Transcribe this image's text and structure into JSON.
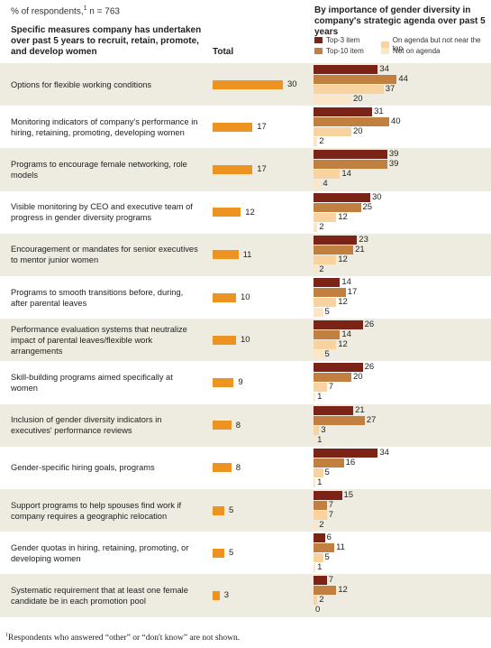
{
  "header": {
    "respondents_prefix": "% of respondents,",
    "respondents_sup": "1",
    "respondents_n": " n = 763",
    "left_title": "Specific measures company has undertaken over past 5 years to recruit, retain, promote, and develop women",
    "total_label": "Total",
    "right_title": "By importance of gender diversity in company's strategic agenda over past 5 years"
  },
  "legend": [
    {
      "label": "Top-3 item",
      "color": "#7b2316"
    },
    {
      "label": "On agenda but not near the top",
      "color": "#f8d39f"
    },
    {
      "label": "Top-10 item",
      "color": "#c28040"
    },
    {
      "label": "Not on agenda",
      "color": "#fbe6c8"
    }
  ],
  "chart_data": {
    "type": "bar",
    "categories": [
      "Options for flexible working conditions",
      "Monitoring indicators of company's performance in hiring, retaining, promoting, developing women",
      "Programs to encourage female networking, role models",
      "Visible monitoring by CEO and executive team of progress in gender diversity programs",
      "Encouragement or mandates for senior executives to mentor junior women",
      "Programs to smooth transitions before, during, after parental leaves",
      "Performance evaluation systems that neutralize impact of parental leaves/flexible work arrangements",
      "Skill-building programs aimed specifically at women",
      "Inclusion of gender diversity indicators in executives' performance reviews",
      "Gender-specific hiring goals, programs",
      "Support programs to help spouses find work if company requires a geographic relocation",
      "Gender quotas in hiring, retaining, promoting, or developing women",
      "Systematic requirement that at least one female candidate be in each promotion pool"
    ],
    "total": [
      30,
      17,
      17,
      12,
      11,
      10,
      10,
      9,
      8,
      8,
      5,
      5,
      3
    ],
    "series": [
      {
        "name": "Top-3 item",
        "color": "#7b2316",
        "values": [
          34,
          31,
          39,
          30,
          23,
          14,
          26,
          26,
          21,
          34,
          15,
          6,
          7
        ]
      },
      {
        "name": "Top-10 item",
        "color": "#c28040",
        "values": [
          44,
          40,
          39,
          25,
          21,
          17,
          14,
          20,
          27,
          16,
          7,
          11,
          12
        ]
      },
      {
        "name": "On agenda but not near the top",
        "color": "#f8d39f",
        "values": [
          37,
          20,
          14,
          12,
          12,
          12,
          12,
          7,
          3,
          5,
          7,
          5,
          2
        ]
      },
      {
        "name": "Not on agenda",
        "color": "#fbe6c8",
        "values": [
          20,
          2,
          4,
          2,
          2,
          5,
          5,
          1,
          1,
          1,
          2,
          1,
          0
        ]
      }
    ],
    "total_color": "#ec9321"
  },
  "footnote": {
    "sup": "1",
    "text": "Respondents who answered “other” or “don't know” are not shown."
  }
}
